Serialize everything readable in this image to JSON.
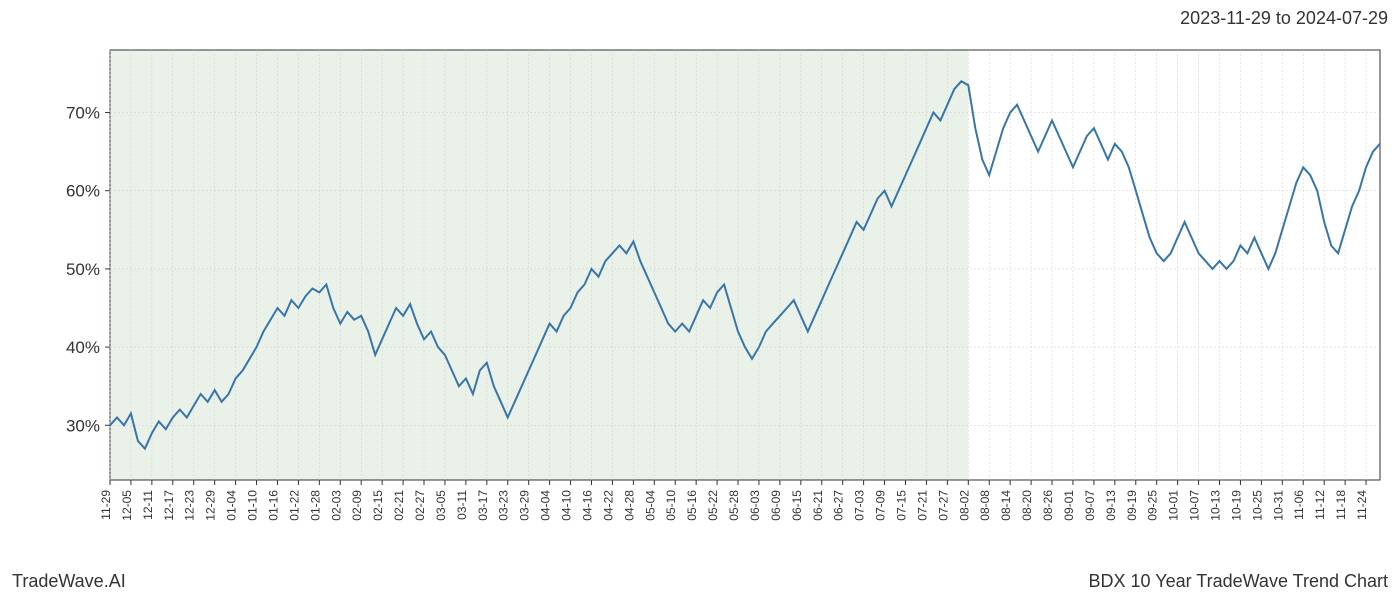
{
  "header": {
    "date_range": "2023-11-29 to 2024-07-29"
  },
  "footer": {
    "left": "TradeWave.AI",
    "right": "BDX 10 Year TradeWave Trend Chart"
  },
  "chart": {
    "type": "line",
    "background_color": "#ffffff",
    "grid_color": "#cccccc",
    "axis_color": "#333333",
    "text_color": "#333333",
    "title_fontsize": 18,
    "label_fontsize": 17,
    "xlabel_fontsize": 12,
    "line_color": "#3875a8",
    "line_width": 2,
    "highlight_color": "#dce8d8",
    "highlight_opacity": 0.6,
    "highlight_start": "11-29",
    "highlight_end": "08-02",
    "ylim": [
      23,
      78
    ],
    "yticks": [
      30,
      40,
      50,
      60,
      70
    ],
    "ytick_labels": [
      "30%",
      "40%",
      "50%",
      "60%",
      "70%"
    ],
    "xticks": [
      "11-29",
      "12-05",
      "12-11",
      "12-17",
      "12-23",
      "12-29",
      "01-04",
      "01-10",
      "01-16",
      "01-22",
      "01-28",
      "02-03",
      "02-09",
      "02-15",
      "02-21",
      "02-27",
      "03-05",
      "03-11",
      "03-17",
      "03-23",
      "03-29",
      "04-04",
      "04-10",
      "04-16",
      "04-22",
      "04-28",
      "05-04",
      "05-10",
      "05-16",
      "05-22",
      "05-28",
      "06-03",
      "06-09",
      "06-15",
      "06-21",
      "06-27",
      "07-03",
      "07-09",
      "07-15",
      "07-21",
      "07-27",
      "08-02",
      "08-08",
      "08-14",
      "08-20",
      "08-26",
      "09-01",
      "09-07",
      "09-13",
      "09-19",
      "09-25",
      "10-01",
      "10-07",
      "10-13",
      "10-19",
      "10-25",
      "10-31",
      "11-06",
      "11-12",
      "11-18",
      "11-24"
    ],
    "series": [
      {
        "x": "11-29",
        "y": 30.0
      },
      {
        "x": "12-01",
        "y": 31.0
      },
      {
        "x": "12-03",
        "y": 30.0
      },
      {
        "x": "12-05",
        "y": 31.5
      },
      {
        "x": "12-07",
        "y": 28.0
      },
      {
        "x": "12-09",
        "y": 27.0
      },
      {
        "x": "12-11",
        "y": 29.0
      },
      {
        "x": "12-13",
        "y": 30.5
      },
      {
        "x": "12-15",
        "y": 29.5
      },
      {
        "x": "12-17",
        "y": 31.0
      },
      {
        "x": "12-19",
        "y": 32.0
      },
      {
        "x": "12-21",
        "y": 31.0
      },
      {
        "x": "12-23",
        "y": 32.5
      },
      {
        "x": "12-25",
        "y": 34.0
      },
      {
        "x": "12-27",
        "y": 33.0
      },
      {
        "x": "12-29",
        "y": 34.5
      },
      {
        "x": "12-31",
        "y": 33.0
      },
      {
        "x": "01-02",
        "y": 34.0
      },
      {
        "x": "01-04",
        "y": 36.0
      },
      {
        "x": "01-06",
        "y": 37.0
      },
      {
        "x": "01-08",
        "y": 38.5
      },
      {
        "x": "01-10",
        "y": 40.0
      },
      {
        "x": "01-12",
        "y": 42.0
      },
      {
        "x": "01-14",
        "y": 43.5
      },
      {
        "x": "01-16",
        "y": 45.0
      },
      {
        "x": "01-18",
        "y": 44.0
      },
      {
        "x": "01-20",
        "y": 46.0
      },
      {
        "x": "01-22",
        "y": 45.0
      },
      {
        "x": "01-24",
        "y": 46.5
      },
      {
        "x": "01-26",
        "y": 47.5
      },
      {
        "x": "01-28",
        "y": 47.0
      },
      {
        "x": "01-30",
        "y": 48.0
      },
      {
        "x": "02-01",
        "y": 45.0
      },
      {
        "x": "02-03",
        "y": 43.0
      },
      {
        "x": "02-05",
        "y": 44.5
      },
      {
        "x": "02-07",
        "y": 43.5
      },
      {
        "x": "02-09",
        "y": 44.0
      },
      {
        "x": "02-11",
        "y": 42.0
      },
      {
        "x": "02-13",
        "y": 39.0
      },
      {
        "x": "02-15",
        "y": 41.0
      },
      {
        "x": "02-17",
        "y": 43.0
      },
      {
        "x": "02-19",
        "y": 45.0
      },
      {
        "x": "02-21",
        "y": 44.0
      },
      {
        "x": "02-23",
        "y": 45.5
      },
      {
        "x": "02-25",
        "y": 43.0
      },
      {
        "x": "02-27",
        "y": 41.0
      },
      {
        "x": "03-01",
        "y": 42.0
      },
      {
        "x": "03-03",
        "y": 40.0
      },
      {
        "x": "03-05",
        "y": 39.0
      },
      {
        "x": "03-07",
        "y": 37.0
      },
      {
        "x": "03-09",
        "y": 35.0
      },
      {
        "x": "03-11",
        "y": 36.0
      },
      {
        "x": "03-13",
        "y": 34.0
      },
      {
        "x": "03-15",
        "y": 37.0
      },
      {
        "x": "03-17",
        "y": 38.0
      },
      {
        "x": "03-19",
        "y": 35.0
      },
      {
        "x": "03-21",
        "y": 33.0
      },
      {
        "x": "03-23",
        "y": 31.0
      },
      {
        "x": "03-25",
        "y": 33.0
      },
      {
        "x": "03-27",
        "y": 35.0
      },
      {
        "x": "03-29",
        "y": 37.0
      },
      {
        "x": "03-31",
        "y": 39.0
      },
      {
        "x": "04-02",
        "y": 41.0
      },
      {
        "x": "04-04",
        "y": 43.0
      },
      {
        "x": "04-06",
        "y": 42.0
      },
      {
        "x": "04-08",
        "y": 44.0
      },
      {
        "x": "04-10",
        "y": 45.0
      },
      {
        "x": "04-12",
        "y": 47.0
      },
      {
        "x": "04-14",
        "y": 48.0
      },
      {
        "x": "04-16",
        "y": 50.0
      },
      {
        "x": "04-18",
        "y": 49.0
      },
      {
        "x": "04-20",
        "y": 51.0
      },
      {
        "x": "04-22",
        "y": 52.0
      },
      {
        "x": "04-24",
        "y": 53.0
      },
      {
        "x": "04-26",
        "y": 52.0
      },
      {
        "x": "04-28",
        "y": 53.5
      },
      {
        "x": "04-30",
        "y": 51.0
      },
      {
        "x": "05-02",
        "y": 49.0
      },
      {
        "x": "05-04",
        "y": 47.0
      },
      {
        "x": "05-06",
        "y": 45.0
      },
      {
        "x": "05-08",
        "y": 43.0
      },
      {
        "x": "05-10",
        "y": 42.0
      },
      {
        "x": "05-12",
        "y": 43.0
      },
      {
        "x": "05-14",
        "y": 42.0
      },
      {
        "x": "05-16",
        "y": 44.0
      },
      {
        "x": "05-18",
        "y": 46.0
      },
      {
        "x": "05-20",
        "y": 45.0
      },
      {
        "x": "05-22",
        "y": 47.0
      },
      {
        "x": "05-24",
        "y": 48.0
      },
      {
        "x": "05-26",
        "y": 45.0
      },
      {
        "x": "05-28",
        "y": 42.0
      },
      {
        "x": "05-30",
        "y": 40.0
      },
      {
        "x": "06-01",
        "y": 38.5
      },
      {
        "x": "06-03",
        "y": 40.0
      },
      {
        "x": "06-05",
        "y": 42.0
      },
      {
        "x": "06-07",
        "y": 43.0
      },
      {
        "x": "06-09",
        "y": 44.0
      },
      {
        "x": "06-11",
        "y": 45.0
      },
      {
        "x": "06-13",
        "y": 46.0
      },
      {
        "x": "06-15",
        "y": 44.0
      },
      {
        "x": "06-17",
        "y": 42.0
      },
      {
        "x": "06-19",
        "y": 44.0
      },
      {
        "x": "06-21",
        "y": 46.0
      },
      {
        "x": "06-23",
        "y": 48.0
      },
      {
        "x": "06-25",
        "y": 50.0
      },
      {
        "x": "06-27",
        "y": 52.0
      },
      {
        "x": "06-29",
        "y": 54.0
      },
      {
        "x": "07-01",
        "y": 56.0
      },
      {
        "x": "07-03",
        "y": 55.0
      },
      {
        "x": "07-05",
        "y": 57.0
      },
      {
        "x": "07-07",
        "y": 59.0
      },
      {
        "x": "07-09",
        "y": 60.0
      },
      {
        "x": "07-11",
        "y": 58.0
      },
      {
        "x": "07-13",
        "y": 60.0
      },
      {
        "x": "07-15",
        "y": 62.0
      },
      {
        "x": "07-17",
        "y": 64.0
      },
      {
        "x": "07-19",
        "y": 66.0
      },
      {
        "x": "07-21",
        "y": 68.0
      },
      {
        "x": "07-23",
        "y": 70.0
      },
      {
        "x": "07-25",
        "y": 69.0
      },
      {
        "x": "07-27",
        "y": 71.0
      },
      {
        "x": "07-29",
        "y": 73.0
      },
      {
        "x": "07-31",
        "y": 74.0
      },
      {
        "x": "08-02",
        "y": 73.5
      },
      {
        "x": "08-04",
        "y": 68.0
      },
      {
        "x": "08-06",
        "y": 64.0
      },
      {
        "x": "08-08",
        "y": 62.0
      },
      {
        "x": "08-10",
        "y": 65.0
      },
      {
        "x": "08-12",
        "y": 68.0
      },
      {
        "x": "08-14",
        "y": 70.0
      },
      {
        "x": "08-16",
        "y": 71.0
      },
      {
        "x": "08-18",
        "y": 69.0
      },
      {
        "x": "08-20",
        "y": 67.0
      },
      {
        "x": "08-22",
        "y": 65.0
      },
      {
        "x": "08-24",
        "y": 67.0
      },
      {
        "x": "08-26",
        "y": 69.0
      },
      {
        "x": "08-28",
        "y": 67.0
      },
      {
        "x": "08-30",
        "y": 65.0
      },
      {
        "x": "09-01",
        "y": 63.0
      },
      {
        "x": "09-03",
        "y": 65.0
      },
      {
        "x": "09-05",
        "y": 67.0
      },
      {
        "x": "09-07",
        "y": 68.0
      },
      {
        "x": "09-09",
        "y": 66.0
      },
      {
        "x": "09-11",
        "y": 64.0
      },
      {
        "x": "09-13",
        "y": 66.0
      },
      {
        "x": "09-15",
        "y": 65.0
      },
      {
        "x": "09-17",
        "y": 63.0
      },
      {
        "x": "09-19",
        "y": 60.0
      },
      {
        "x": "09-21",
        "y": 57.0
      },
      {
        "x": "09-23",
        "y": 54.0
      },
      {
        "x": "09-25",
        "y": 52.0
      },
      {
        "x": "09-27",
        "y": 51.0
      },
      {
        "x": "09-29",
        "y": 52.0
      },
      {
        "x": "10-01",
        "y": 54.0
      },
      {
        "x": "10-03",
        "y": 56.0
      },
      {
        "x": "10-05",
        "y": 54.0
      },
      {
        "x": "10-07",
        "y": 52.0
      },
      {
        "x": "10-09",
        "y": 51.0
      },
      {
        "x": "10-11",
        "y": 50.0
      },
      {
        "x": "10-13",
        "y": 51.0
      },
      {
        "x": "10-15",
        "y": 50.0
      },
      {
        "x": "10-17",
        "y": 51.0
      },
      {
        "x": "10-19",
        "y": 53.0
      },
      {
        "x": "10-21",
        "y": 52.0
      },
      {
        "x": "10-23",
        "y": 54.0
      },
      {
        "x": "10-25",
        "y": 52.0
      },
      {
        "x": "10-27",
        "y": 50.0
      },
      {
        "x": "10-29",
        "y": 52.0
      },
      {
        "x": "10-31",
        "y": 55.0
      },
      {
        "x": "11-02",
        "y": 58.0
      },
      {
        "x": "11-04",
        "y": 61.0
      },
      {
        "x": "11-06",
        "y": 63.0
      },
      {
        "x": "11-08",
        "y": 62.0
      },
      {
        "x": "11-10",
        "y": 60.0
      },
      {
        "x": "11-12",
        "y": 56.0
      },
      {
        "x": "11-14",
        "y": 53.0
      },
      {
        "x": "11-16",
        "y": 52.0
      },
      {
        "x": "11-18",
        "y": 55.0
      },
      {
        "x": "11-20",
        "y": 58.0
      },
      {
        "x": "11-22",
        "y": 60.0
      },
      {
        "x": "11-24",
        "y": 63.0
      },
      {
        "x": "11-26",
        "y": 65.0
      },
      {
        "x": "11-28",
        "y": 66.0
      }
    ]
  }
}
